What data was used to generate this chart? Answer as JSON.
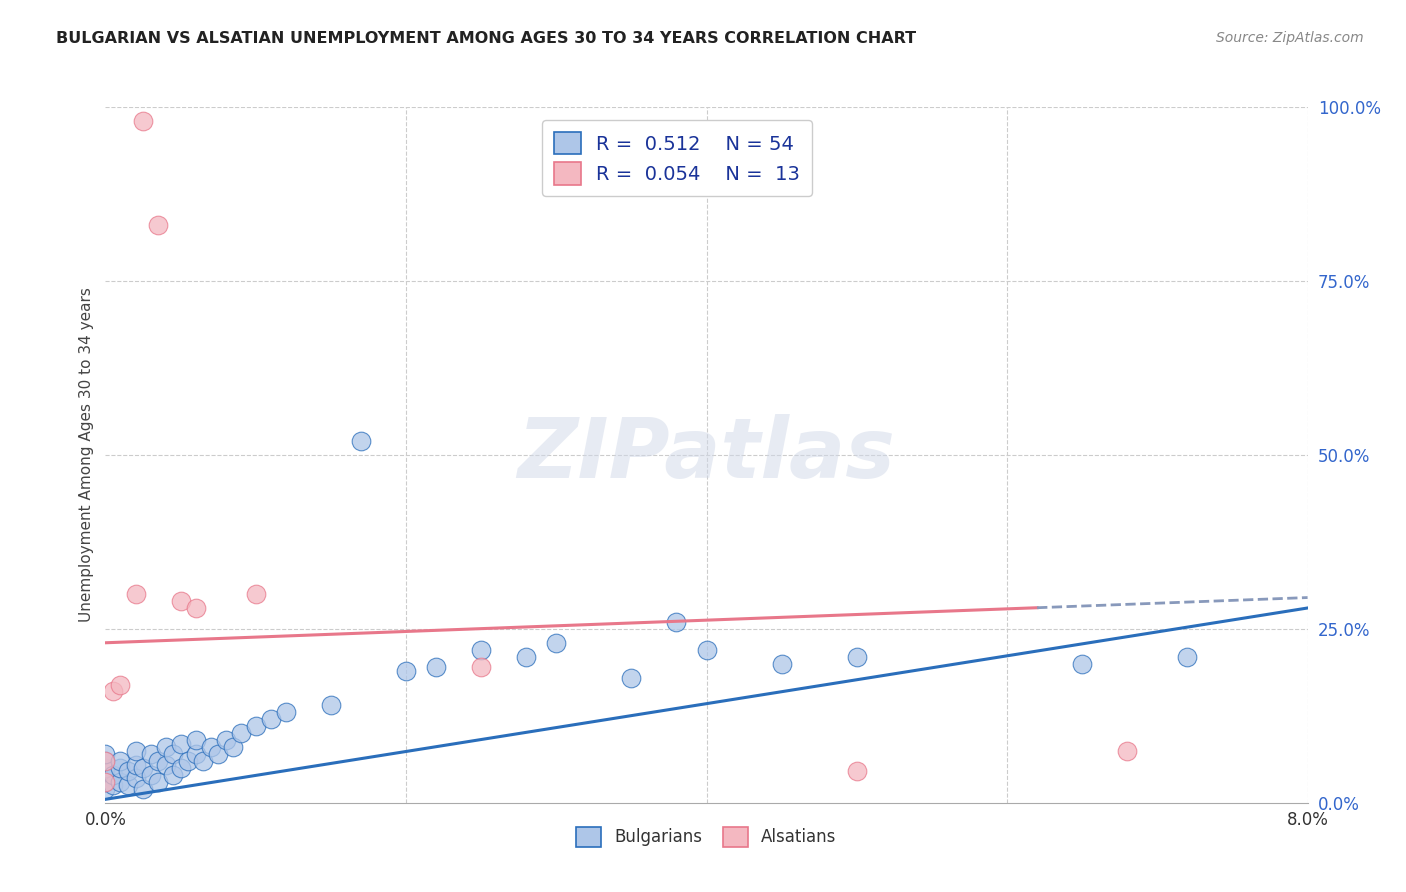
{
  "title": "BULGARIAN VS ALSATIAN UNEMPLOYMENT AMONG AGES 30 TO 34 YEARS CORRELATION CHART",
  "source": "Source: ZipAtlas.com",
  "ylabel": "Unemployment Among Ages 30 to 34 years",
  "ylabel_right_ticks": [
    "100.0%",
    "75.0%",
    "50.0%",
    "25.0%",
    "0.0%"
  ],
  "ylabel_right_vals": [
    100,
    75,
    50,
    25,
    0
  ],
  "xmin": 0.0,
  "xmax": 8.0,
  "ymin": 0.0,
  "ymax": 100.0,
  "bulgarian_R": 0.512,
  "bulgarian_N": 54,
  "alsatian_R": 0.054,
  "alsatian_N": 13,
  "bulgarian_color": "#aec6e8",
  "alsatian_color": "#f4b8c1",
  "bulgarian_line_color": "#2a6ebb",
  "alsatian_line_color": "#e8778a",
  "bulgarian_trend_x0": 0.0,
  "bulgarian_trend_y0": 0.5,
  "bulgarian_trend_x1": 8.0,
  "bulgarian_trend_y1": 28.0,
  "alsatian_trend_x0": 0.0,
  "alsatian_trend_y0": 23.0,
  "alsatian_trend_x1": 8.0,
  "alsatian_trend_y1": 29.5,
  "alsatian_dash_split": 6.2,
  "bulgarian_x": [
    0.0,
    0.0,
    0.0,
    0.0,
    0.0,
    0.0,
    0.05,
    0.05,
    0.1,
    0.1,
    0.1,
    0.15,
    0.15,
    0.2,
    0.2,
    0.2,
    0.25,
    0.25,
    0.3,
    0.3,
    0.35,
    0.35,
    0.4,
    0.4,
    0.45,
    0.45,
    0.5,
    0.5,
    0.55,
    0.6,
    0.6,
    0.65,
    0.7,
    0.75,
    0.8,
    0.85,
    0.9,
    1.0,
    1.1,
    1.2,
    1.5,
    1.7,
    2.0,
    2.2,
    2.5,
    2.8,
    3.0,
    3.5,
    3.8,
    4.0,
    4.5,
    5.0,
    6.5,
    7.2
  ],
  "bulgarian_y": [
    2.0,
    3.0,
    4.5,
    5.0,
    6.0,
    7.0,
    2.5,
    4.0,
    3.0,
    5.0,
    6.0,
    2.5,
    4.5,
    3.5,
    5.5,
    7.5,
    2.0,
    5.0,
    4.0,
    7.0,
    3.0,
    6.0,
    5.5,
    8.0,
    4.0,
    7.0,
    5.0,
    8.5,
    6.0,
    7.0,
    9.0,
    6.0,
    8.0,
    7.0,
    9.0,
    8.0,
    10.0,
    11.0,
    12.0,
    13.0,
    14.0,
    52.0,
    19.0,
    19.5,
    22.0,
    21.0,
    23.0,
    18.0,
    26.0,
    22.0,
    20.0,
    21.0,
    20.0,
    21.0
  ],
  "alsatian_x": [
    0.0,
    0.0,
    0.05,
    0.1,
    0.2,
    0.25,
    0.35,
    0.5,
    0.6,
    1.0,
    2.5,
    5.0,
    6.8
  ],
  "alsatian_y": [
    3.0,
    6.0,
    16.0,
    17.0,
    30.0,
    98.0,
    83.0,
    29.0,
    28.0,
    30.0,
    19.5,
    4.5,
    7.5
  ]
}
